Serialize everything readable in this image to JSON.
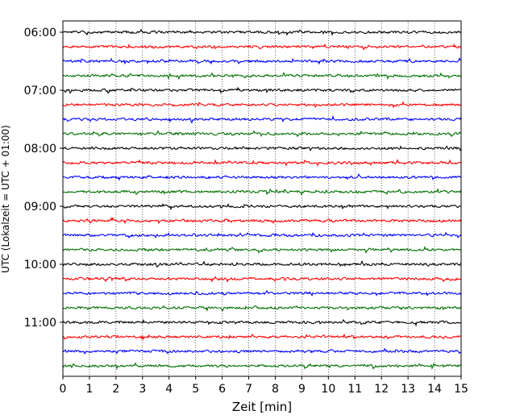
{
  "chart_data": {
    "type": "line",
    "title": "",
    "xlabel": "Zeit  [min]",
    "ylabel": "UTC (Lokalzeit = UTC + 01:00)",
    "xlim": [
      0,
      15
    ],
    "x_ticks": [
      "0",
      "1",
      "2",
      "3",
      "4",
      "5",
      "6",
      "7",
      "8",
      "9",
      "10",
      "11",
      "12",
      "13",
      "14",
      "15"
    ],
    "y_ticks": [
      "06:00",
      "07:00",
      "08:00",
      "09:00",
      "10:00",
      "11:00"
    ],
    "grid": "vertical dotted",
    "trace_interval_min": 15,
    "trace_colors": [
      "#000000",
      "#ff0000",
      "#0000ff",
      "#007000"
    ],
    "traces": [
      {
        "start": "06:00"
      },
      {
        "start": "06:15"
      },
      {
        "start": "06:30"
      },
      {
        "start": "06:45"
      },
      {
        "start": "07:00"
      },
      {
        "start": "07:15"
      },
      {
        "start": "07:30"
      },
      {
        "start": "07:45"
      },
      {
        "start": "08:00"
      },
      {
        "start": "08:15"
      },
      {
        "start": "08:30"
      },
      {
        "start": "08:45"
      },
      {
        "start": "09:00"
      },
      {
        "start": "09:15"
      },
      {
        "start": "09:30"
      },
      {
        "start": "09:45"
      },
      {
        "start": "10:00"
      },
      {
        "start": "10:15"
      },
      {
        "start": "10:30"
      },
      {
        "start": "10:45"
      },
      {
        "start": "11:00"
      },
      {
        "start": "11:15"
      },
      {
        "start": "11:30"
      },
      {
        "start": "11:45"
      }
    ]
  }
}
